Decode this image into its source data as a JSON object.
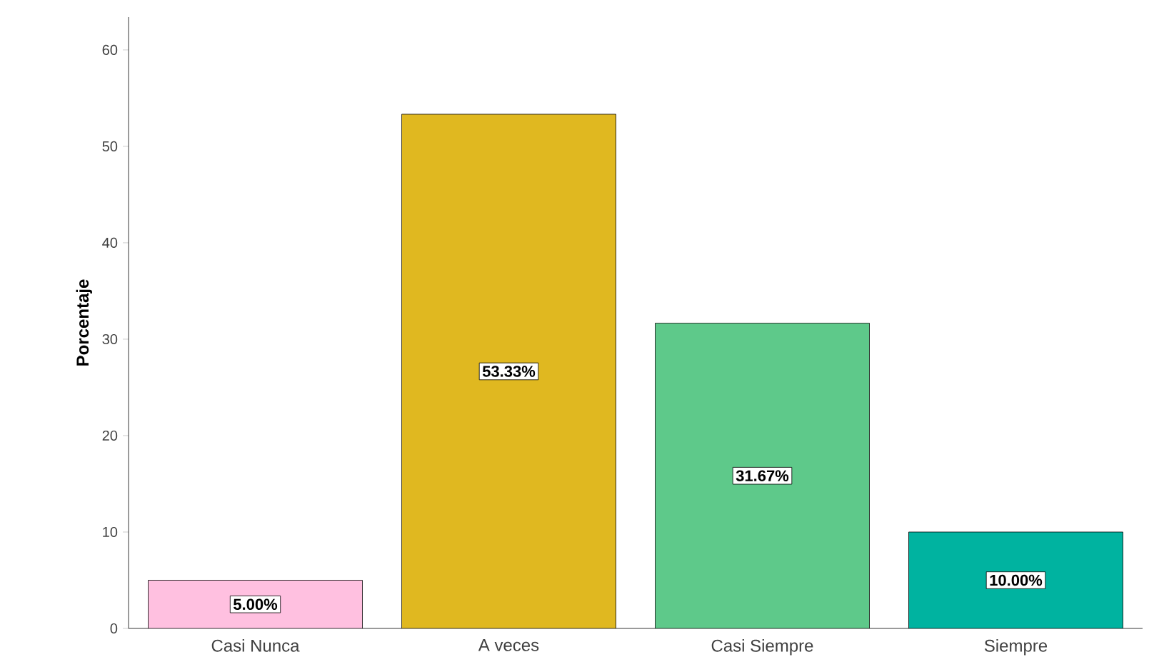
{
  "chart_data": {
    "type": "bar",
    "ylabel": "Porcentaje",
    "categories": [
      "Casi Nunca",
      "A veces",
      "Casi Siempre",
      "Siempre"
    ],
    "values": [
      5.0,
      53.33,
      31.67,
      10.0
    ],
    "value_labels": [
      "5.00%",
      "53.33%",
      "31.67%",
      "10.00%"
    ],
    "colors": [
      "#ffc0e0",
      "#e0b820",
      "#5ec98a",
      "#00b3a0"
    ],
    "ylim": [
      0,
      63.4
    ],
    "yticks": [
      0,
      10,
      20,
      30,
      40,
      50,
      60
    ],
    "grid": false
  }
}
